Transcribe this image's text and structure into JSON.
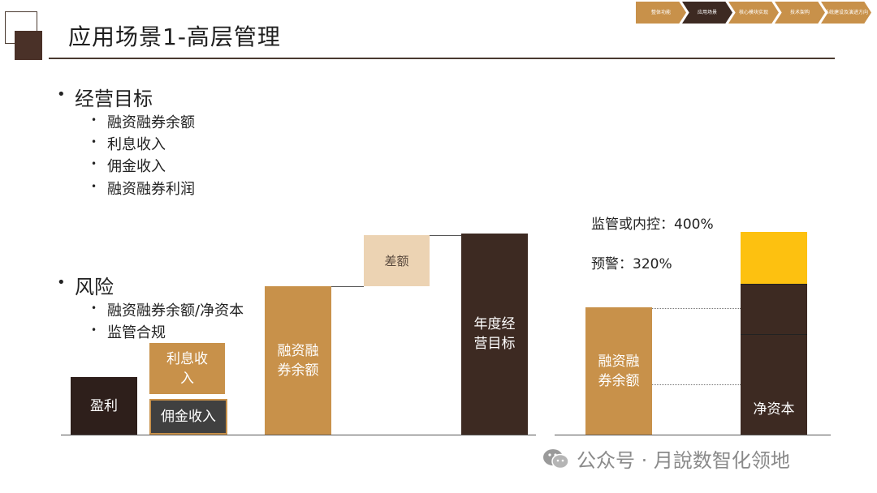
{
  "title": "应用场景1-高层管理",
  "breadcrumb": [
    {
      "label": "整体功能",
      "color": "#c8914a"
    },
    {
      "label": "应用场景",
      "color": "#3d2a22"
    },
    {
      "label": "核心模块实现",
      "color": "#c8914a"
    },
    {
      "label": "技术架构",
      "color": "#c8914a"
    },
    {
      "label": "系统建设及演进方向",
      "color": "#c8914a"
    }
  ],
  "sections": {
    "goals": {
      "heading": "经营目标",
      "items": [
        "融资融券余额",
        "利息收入",
        "佣金收入",
        "融资融券利润"
      ]
    },
    "risk": {
      "heading": "风险",
      "items": [
        "融资融券余额/净资本",
        "监管合规"
      ]
    }
  },
  "waterfall": {
    "profit": "盈利",
    "commission": "佣金收入",
    "interest": "利息收入",
    "balance": "融资融券余额",
    "gap": "差额",
    "target": "年度经营目标"
  },
  "risk_chart": {
    "regulatory": "监管或内控：400%",
    "warning": "预警：320%",
    "balance": "融资融券余额",
    "net_capital": "净资本"
  },
  "colors": {
    "dark_brown": "#3d2a22",
    "tan": "#c8914a",
    "light_tan": "#ecd3b3",
    "gray": "#404040",
    "gold": "#fdc110"
  },
  "watermark": "公众号 · 月說数智化领地"
}
